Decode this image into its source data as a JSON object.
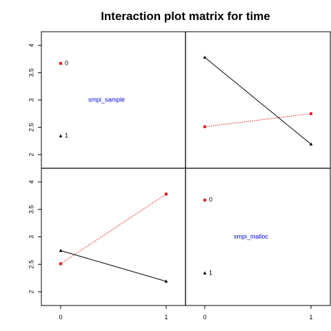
{
  "chart_data": {
    "type": "interaction-matrix",
    "title": "Interaction plot matrix for time",
    "factors": [
      "smpi_sample",
      "smpi_malloc"
    ],
    "levels": [
      "0",
      "1"
    ],
    "y_ticks": [
      "2",
      "2.5",
      "3",
      "3.5",
      "4"
    ],
    "ylim": [
      1.75,
      4.25
    ],
    "x_ticks": [
      "0",
      "1"
    ],
    "diagonal": [
      {
        "factor": "smpi_sample",
        "levels": [
          {
            "label": "0",
            "value": 3.67
          },
          {
            "label": "1",
            "value": 2.34
          }
        ]
      },
      {
        "factor": "smpi_malloc",
        "levels": [
          {
            "label": "0",
            "value": 3.67
          },
          {
            "label": "1",
            "value": 2.34
          }
        ]
      }
    ],
    "panels": [
      {
        "row": 0,
        "col": 1,
        "series": [
          {
            "trace": "0",
            "x": [
              0,
              1
            ],
            "y": [
              2.51,
              2.75
            ],
            "color": "#e41a1c",
            "dash": true,
            "marker": "square"
          },
          {
            "trace": "1",
            "x": [
              0,
              1
            ],
            "y": [
              3.78,
              2.19
            ],
            "color": "#000000",
            "dash": false,
            "marker": "triangle"
          }
        ]
      },
      {
        "row": 1,
        "col": 0,
        "series": [
          {
            "trace": "0",
            "x": [
              0,
              1
            ],
            "y": [
              2.51,
              3.78
            ],
            "color": "#e41a1c",
            "dash": true,
            "marker": "square"
          },
          {
            "trace": "1",
            "x": [
              0,
              1
            ],
            "y": [
              2.75,
              2.19
            ],
            "color": "#000000",
            "dash": false,
            "marker": "triangle"
          }
        ]
      }
    ],
    "colors": {
      "factor_label": "#0000ee",
      "level_0": "#e41a1c",
      "level_1": "#000000"
    }
  }
}
